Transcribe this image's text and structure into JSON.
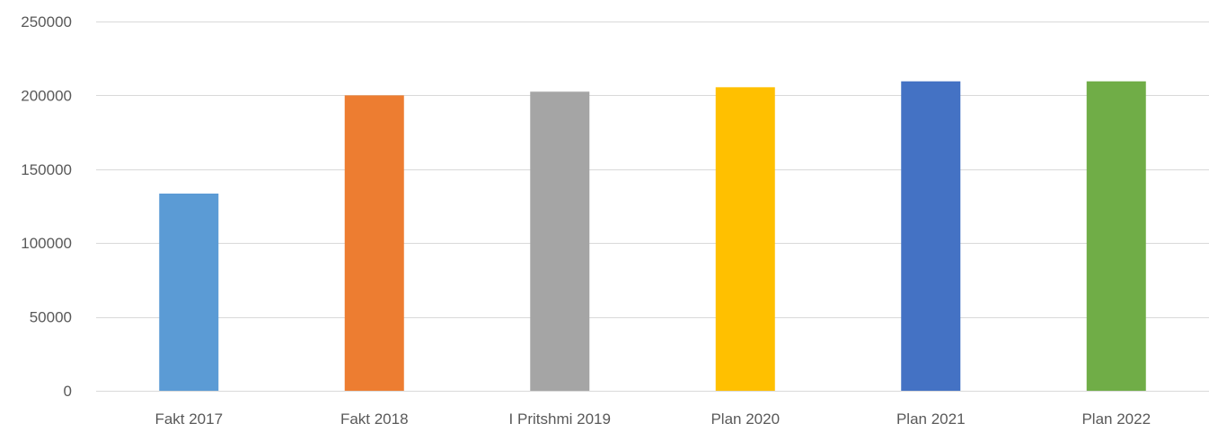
{
  "chart_data": {
    "type": "bar",
    "title": "",
    "xlabel": "",
    "ylabel": "",
    "categories": [
      "Fakt 2017",
      "Fakt 2018",
      "I Pritshmi 2019",
      "Plan 2020",
      "Plan 2021",
      "Plan 2022"
    ],
    "values": [
      133500,
      200000,
      202500,
      205500,
      209500,
      209500
    ],
    "colors": [
      "#5B9BD5",
      "#ED7D31",
      "#A5A5A5",
      "#FFC000",
      "#4472C4",
      "#70AD47"
    ],
    "ylim": [
      0,
      250000
    ],
    "yticks": [
      0,
      50000,
      100000,
      150000,
      200000,
      250000
    ],
    "ytick_labels": [
      "0",
      "50000",
      "100000",
      "150000",
      "200000",
      "250000"
    ],
    "grid": true,
    "legend": "none",
    "gridline_color": "#D9D9D9",
    "label_color": "#595959"
  }
}
